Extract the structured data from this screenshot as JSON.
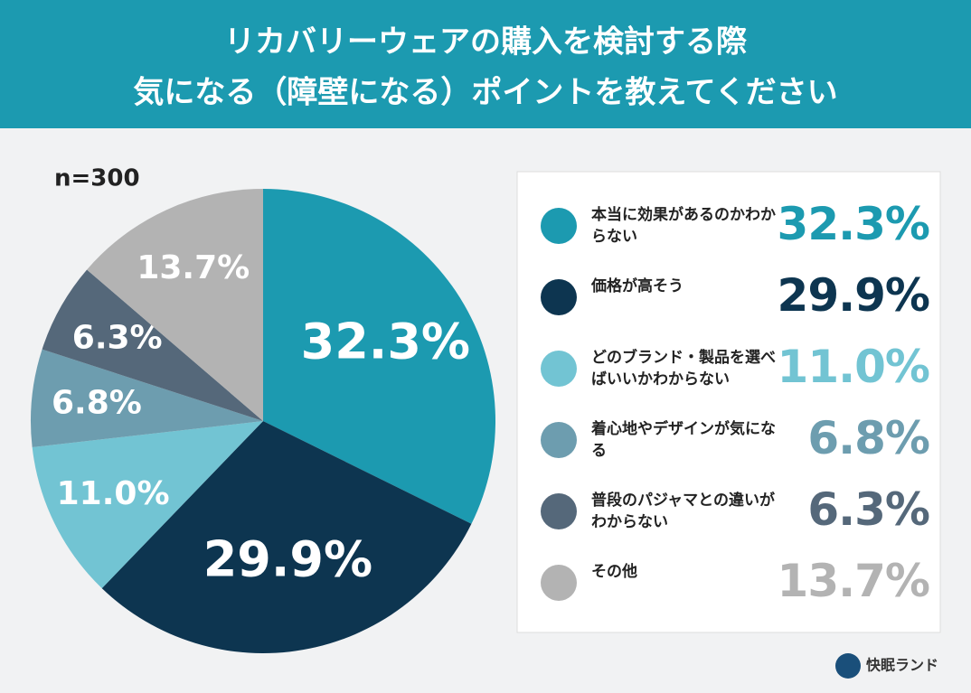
{
  "chart_data": {
    "type": "pie",
    "title": [
      "リカバリーウェアの購入を検討する際",
      "気になる（障壁になる）ポイントを教えてください"
    ],
    "note": "n=300",
    "categories": [
      "本当に効果があるのかわからない",
      "価格が高そう",
      "どのブランド・製品を選べばいいかわからない",
      "着心地やデザインが気になる",
      "普段のパジャマとの違いがわからない",
      "その他"
    ],
    "values": [
      32.3,
      29.9,
      11.0,
      6.8,
      6.3,
      13.7
    ],
    "value_labels": [
      "32.3%",
      "29.9%",
      "11.0%",
      "6.8%",
      "6.3%",
      "13.7%"
    ],
    "colors": [
      "#1c9ab0",
      "#0d3550",
      "#72c4d3",
      "#6d9daf",
      "#55687a",
      "#b3b3b3"
    ],
    "brand": "快眠ランド"
  }
}
